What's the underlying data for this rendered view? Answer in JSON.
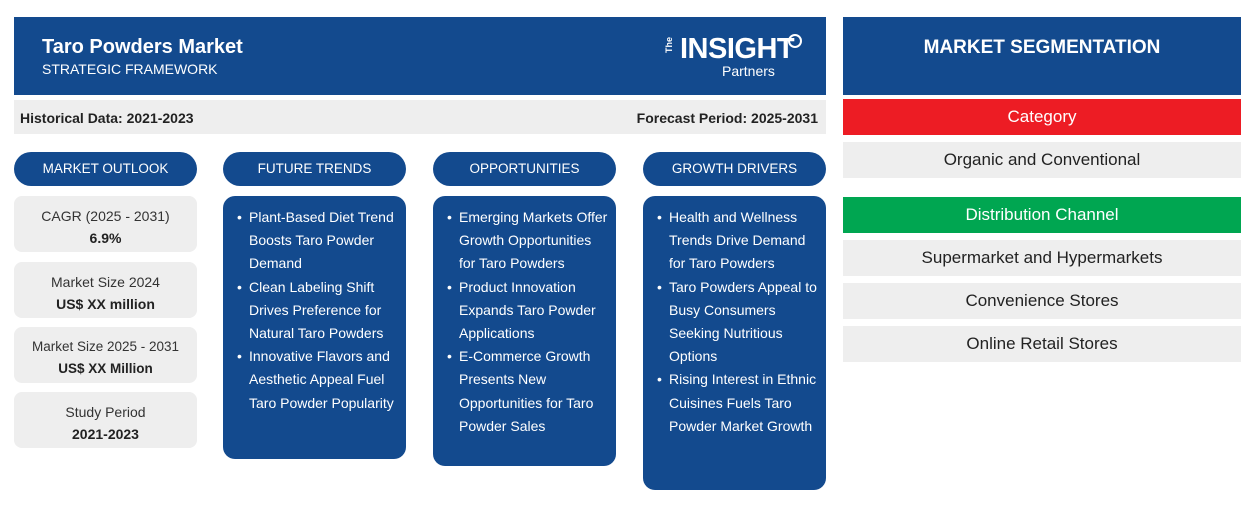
{
  "header": {
    "title": "Taro Powders Market",
    "subtitle": "STRATEGIC FRAMEWORK",
    "logo": {
      "small": "The",
      "main": "INSIGHT",
      "sub": "Partners"
    }
  },
  "dates": {
    "historical": "Historical Data: 2021-2023",
    "forecast": "Forecast Period: 2025-2031"
  },
  "columns": {
    "outlook": "MARKET OUTLOOK",
    "trends": "FUTURE TRENDS",
    "opportunities": "OPPORTUNITIES",
    "drivers": "GROWTH DRIVERS"
  },
  "outlook": [
    {
      "label": "CAGR (2025 - 2031)",
      "value": "6.9%"
    },
    {
      "label": "Market Size 2024",
      "value": "US$ XX million"
    },
    {
      "label": "Market Size 2025 - 2031",
      "value": "US$ XX Million"
    },
    {
      "label": "Study Period",
      "value": "2021-2023"
    }
  ],
  "trends": [
    "Plant-Based Diet Trend Boosts Taro Powder Demand",
    "Clean Labeling Shift Drives Preference for Natural Taro Powders",
    "Innovative Flavors and Aesthetic Appeal Fuel Taro Powder Popularity"
  ],
  "opportunities": [
    "Emerging Markets Offer Growth Opportunities for Taro Powders",
    "Product Innovation Expands Taro Powder Applications",
    "E-Commerce Growth Presents New Opportunities for Taro Powder Sales"
  ],
  "drivers": [
    "Health and Wellness Trends Drive Demand for Taro Powders",
    "Taro Powders Appeal to Busy Consumers Seeking Nutritious Options",
    "Rising Interest in Ethnic Cuisines Fuels Taro Powder Market Growth"
  ],
  "segmentation": {
    "title": "MARKET SEGMENTATION",
    "category": {
      "label": "Category",
      "color": "#ed1c24",
      "items": [
        "Organic and Conventional"
      ]
    },
    "distribution": {
      "label": "Distribution Channel",
      "color": "#00a651",
      "items": [
        "Supermarket and Hypermarkets",
        "Convenience Stores",
        "Online Retail Stores"
      ]
    }
  },
  "colors": {
    "primary": "#134a8e",
    "panel": "#eeeeee"
  }
}
